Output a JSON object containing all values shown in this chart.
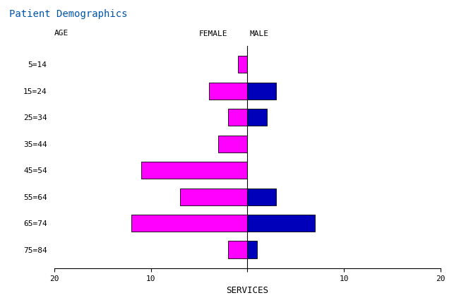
{
  "title": "Patient Demographics",
  "xlabel": "SERVICES",
  "age_labels": [
    "5=14",
    "15=24",
    "25=34",
    "35=44",
    "45=54",
    "55=64",
    "65=74",
    "75=84"
  ],
  "female_values": [
    1,
    4,
    2,
    3,
    11,
    7,
    12,
    2
  ],
  "male_values": [
    0,
    3,
    2,
    0,
    0,
    3,
    7,
    1
  ],
  "female_color": "#FF00FF",
  "male_color": "#0000BB",
  "title_color": "#0055AA",
  "xlim": 20,
  "bar_height": 0.65,
  "xticks": [
    -20,
    -10,
    0,
    10,
    20
  ],
  "xticklabels": [
    "20",
    "10",
    "",
    "10",
    "20"
  ],
  "legend_female": "FEMALE",
  "legend_male": "MALE",
  "age_label": "AGE"
}
